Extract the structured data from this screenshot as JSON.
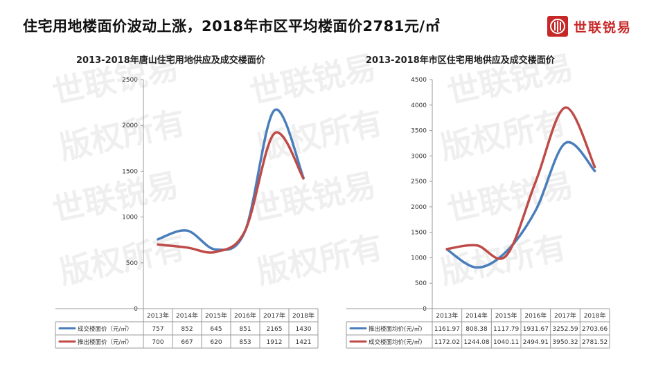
{
  "headline": "住宅用地楼面价波动上涨，2018年市区平均楼面价2781元/㎡",
  "logo": {
    "brand_name": "世联锐易",
    "brand_color": "#c62828"
  },
  "watermark": {
    "line1": "世联锐易",
    "line2": "版权所有"
  },
  "chart_data": [
    {
      "type": "line",
      "title": "2013-2018年唐山住宅用地供应及成交楼面价",
      "categories": [
        "2013年",
        "2014年",
        "2015年",
        "2016年",
        "2017年",
        "2018年"
      ],
      "ylim": [
        0,
        2500
      ],
      "yticks": [
        0,
        500,
        1000,
        1500,
        2000,
        2500
      ],
      "grid": false,
      "legend": "table-below",
      "series": [
        {
          "name": "成交楼面价（元/㎡）",
          "color": "#4a7ebb",
          "values": [
            757,
            852,
            645,
            851,
            2165,
            1430
          ],
          "labels": [
            "757",
            "852",
            "645",
            "851",
            "2165",
            "1430"
          ]
        },
        {
          "name": "推出楼面价（元/㎡）",
          "color": "#be4b48",
          "values": [
            700,
            667,
            620,
            853,
            1912,
            1421
          ],
          "labels": [
            "700",
            "667",
            "620",
            "853",
            "1912",
            "1421"
          ]
        }
      ]
    },
    {
      "type": "line",
      "title": "2013-2018年市区住宅用地供应及成交楼面价",
      "categories": [
        "2013年",
        "2014年",
        "2015年",
        "2016年",
        "2017年",
        "2018年"
      ],
      "ylim": [
        0,
        4500
      ],
      "yticks": [
        0,
        500,
        1000,
        1500,
        2000,
        2500,
        3000,
        3500,
        4000,
        4500
      ],
      "grid": false,
      "legend": "table-below",
      "series": [
        {
          "name": "推出楼面均价(元/㎡)",
          "color": "#4a7ebb",
          "values": [
            1161.97,
            808.38,
            1117.79,
            1931.67,
            3252.59,
            2703.66
          ],
          "labels": [
            "1161.97",
            "808.38",
            "1117.79",
            "1931.67",
            "3252.59",
            "2703.66"
          ]
        },
        {
          "name": "成交楼面均价(元/㎡)",
          "color": "#be4b48",
          "values": [
            1172.02,
            1244.08,
            1040.11,
            2494.91,
            3950.32,
            2781.52
          ],
          "labels": [
            "1172.02",
            "1244.08",
            "1040.11",
            "2494.91",
            "3950.32",
            "2781.52"
          ]
        }
      ]
    }
  ]
}
